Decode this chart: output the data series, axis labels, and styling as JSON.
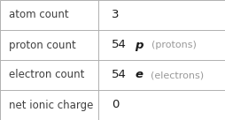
{
  "rows": [
    {
      "label": "atom count",
      "value_main": "3",
      "value_bold": "",
      "value_suffix": ""
    },
    {
      "label": "proton count",
      "value_main": "54",
      "value_bold": "p",
      "value_suffix": "(protons)"
    },
    {
      "label": "electron count",
      "value_main": "54",
      "value_bold": "e",
      "value_suffix": "(electrons)"
    },
    {
      "label": "net ionic charge",
      "value_main": "0",
      "value_bold": "",
      "value_suffix": ""
    }
  ],
  "col_split": 0.435,
  "background_color": "#ffffff",
  "border_color": "#b0b0b0",
  "text_color_label": "#404040",
  "text_color_value": "#1a1a1a",
  "text_color_suffix": "#999999",
  "font_size_label": 8.5,
  "font_size_value": 9.5,
  "font_size_suffix": 8.0
}
